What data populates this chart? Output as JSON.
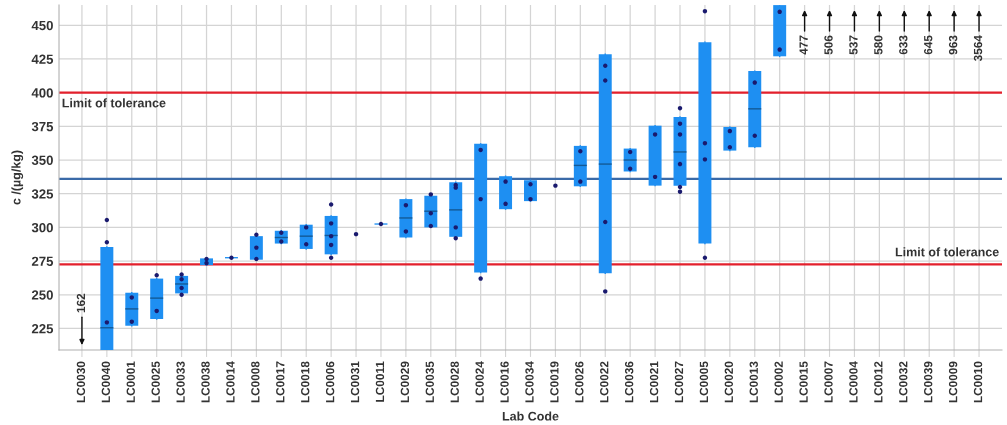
{
  "chart_data": {
    "type": "box",
    "xlabel": "Lab Code",
    "ylabel": "c /(µg/kg)",
    "categories": [
      "LC0030",
      "LC0040",
      "LC0001",
      "LC0025",
      "LC0033",
      "LC0038",
      "LC0014",
      "LC0008",
      "LC0017",
      "LC0018",
      "LC0006",
      "LC0031",
      "LC0011",
      "LC0029",
      "LC0035",
      "LC0028",
      "LC0024",
      "LC0016",
      "LC0034",
      "LC0019",
      "LC0026",
      "LC0022",
      "LC0036",
      "LC0021",
      "LC0027",
      "LC0005",
      "LC0020",
      "LC0013",
      "LC0002",
      "LC0015",
      "LC0007",
      "LC0004",
      "LC0012",
      "LC0032",
      "LC0039",
      "LC0009",
      "LC0010"
    ],
    "series": [
      {
        "color": "#1e8ff2",
        "boxes": [
          null,
          {
            "low": 209,
            "q1": 209,
            "median": 225.5,
            "q3": 285.5,
            "high": 285.5
          },
          {
            "low": 227,
            "q1": 227,
            "median": 239.5,
            "q3": 251.5,
            "high": 251.5
          },
          {
            "low": 232,
            "q1": 232,
            "median": 247.5,
            "q3": 262,
            "high": 262
          },
          {
            "low": 251,
            "q1": 251,
            "median": 258,
            "q3": 264,
            "high": 264
          },
          {
            "low": 272,
            "q1": 272,
            "median": null,
            "q3": 277,
            "high": 277
          },
          {
            "low": 277,
            "q1": 277,
            "median": null,
            "q3": 278,
            "high": 278
          },
          {
            "low": 276,
            "q1": 276,
            "median": null,
            "q3": 293.5,
            "high": 293.5
          },
          {
            "low": 288,
            "q1": 288,
            "median": 292.5,
            "q3": 297.5,
            "high": 297.5
          },
          {
            "low": 284,
            "q1": 284,
            "median": 293.5,
            "q3": 302,
            "high": 302
          },
          {
            "low": 280,
            "q1": 280,
            "median": 294,
            "q3": 308.5,
            "high": 308.5
          },
          null,
          {
            "low": 302,
            "q1": 302,
            "median": null,
            "q3": 303,
            "high": 303
          },
          {
            "low": 292.5,
            "q1": 292.5,
            "median": 307,
            "q3": 321,
            "high": 321
          },
          {
            "low": 300,
            "q1": 300,
            "median": 312,
            "q3": 323.5,
            "high": 323.5
          },
          {
            "low": 293,
            "q1": 293,
            "median": 313,
            "q3": 333.5,
            "high": 333.5
          },
          {
            "low": 266.5,
            "q1": 266.5,
            "median": null,
            "q3": 362,
            "high": 362
          },
          {
            "low": 313.5,
            "q1": 313.5,
            "median": null,
            "q3": 338,
            "high": 338
          },
          {
            "low": 319.5,
            "q1": 319.5,
            "median": null,
            "q3": 335,
            "high": 335
          },
          null,
          {
            "low": 330.5,
            "q1": 330.5,
            "median": 346,
            "q3": 360.5,
            "high": 360.5
          },
          {
            "low": 266,
            "q1": 266,
            "median": 347,
            "q3": 428.5,
            "high": 428.5
          },
          {
            "low": 341.5,
            "q1": 341.5,
            "median": 350,
            "q3": 358.5,
            "high": 358.5
          },
          {
            "low": 331,
            "q1": 331,
            "median": null,
            "q3": 375.5,
            "high": 375.5
          },
          {
            "low": 331,
            "q1": 331,
            "median": 356,
            "q3": 382,
            "high": 382
          },
          {
            "low": 288,
            "q1": 288,
            "median": null,
            "q3": 437.5,
            "high": 437.5
          },
          {
            "low": 357,
            "q1": 357,
            "median": null,
            "q3": 374.5,
            "high": 374.5
          },
          {
            "low": 359.5,
            "q1": 359.5,
            "median": 388,
            "q3": 416,
            "high": 416
          },
          {
            "low": 427,
            "q1": 427,
            "median": null,
            "q3": 465,
            "high": 465
          },
          null,
          null,
          null,
          null,
          null,
          null,
          null,
          null
        ]
      },
      {
        "type": "scatter",
        "color": "#1a1a6e",
        "marker": "circle",
        "x": [
          "LC0040",
          "LC0040",
          "LC0040",
          "LC0001",
          "LC0001",
          "LC0025",
          "LC0025",
          "LC0033",
          "LC0033",
          "LC0033",
          "LC0033",
          "LC0038",
          "LC0038",
          "LC0014",
          "LC0008",
          "LC0008",
          "LC0008",
          "LC0017",
          "LC0017",
          "LC0018",
          "LC0018",
          "LC0006",
          "LC0006",
          "LC0006",
          "LC0006",
          "LC0006",
          "LC0031",
          "LC0011",
          "LC0029",
          "LC0029",
          "LC0035",
          "LC0035",
          "LC0035",
          "LC0028",
          "LC0028",
          "LC0028",
          "LC0028",
          "LC0024",
          "LC0024",
          "LC0024",
          "LC0016",
          "LC0016",
          "LC0034",
          "LC0034",
          "LC0019",
          "LC0026",
          "LC0026",
          "LC0022",
          "LC0022",
          "LC0022",
          "LC0022",
          "LC0036",
          "LC0036",
          "LC0021",
          "LC0021",
          "LC0027",
          "LC0027",
          "LC0027",
          "LC0027",
          "LC0027",
          "LC0027",
          "LC0005",
          "LC0005",
          "LC0005",
          "LC0005",
          "LC0020",
          "LC0020",
          "LC0013",
          "LC0013",
          "LC0002",
          "LC0002"
        ],
        "values": [
          305.5,
          289,
          229.5,
          248,
          230,
          264.5,
          238,
          265,
          261.5,
          255,
          250,
          276.5,
          273.5,
          277.5,
          294.5,
          285,
          276.5,
          296,
          289.5,
          300,
          287.5,
          317,
          303,
          293.5,
          287,
          277.5,
          295,
          302.5,
          316.5,
          297,
          324.5,
          310.5,
          301,
          331.5,
          329.5,
          300,
          292,
          357.5,
          321,
          262,
          334,
          317.5,
          332,
          321,
          331,
          356.5,
          334,
          420,
          409,
          304,
          252.5,
          356,
          343.5,
          369,
          337.5,
          388.5,
          377,
          369,
          347,
          330,
          326.5,
          460.5,
          362.5,
          350.5,
          277.5,
          371.5,
          359.5,
          407.5,
          368,
          460,
          432
        ]
      }
    ],
    "ylim": [
      209,
      465
    ],
    "yticks": [
      225,
      250,
      275,
      300,
      325,
      350,
      375,
      400,
      425,
      450
    ],
    "grid": true,
    "ref_lines": [
      {
        "axis": "y",
        "value": 400,
        "label": "Limit of tolerance",
        "color": "#e3202c"
      },
      {
        "axis": "y",
        "value": 336,
        "color": "#3a6aa8"
      },
      {
        "axis": "y",
        "value": 272.5,
        "label": "Limit of tolerance",
        "color": "#e3202c"
      }
    ],
    "annotations": [
      "162",
      "477",
      "506",
      "537",
      "580",
      "633",
      "645",
      "963",
      "3564"
    ]
  }
}
